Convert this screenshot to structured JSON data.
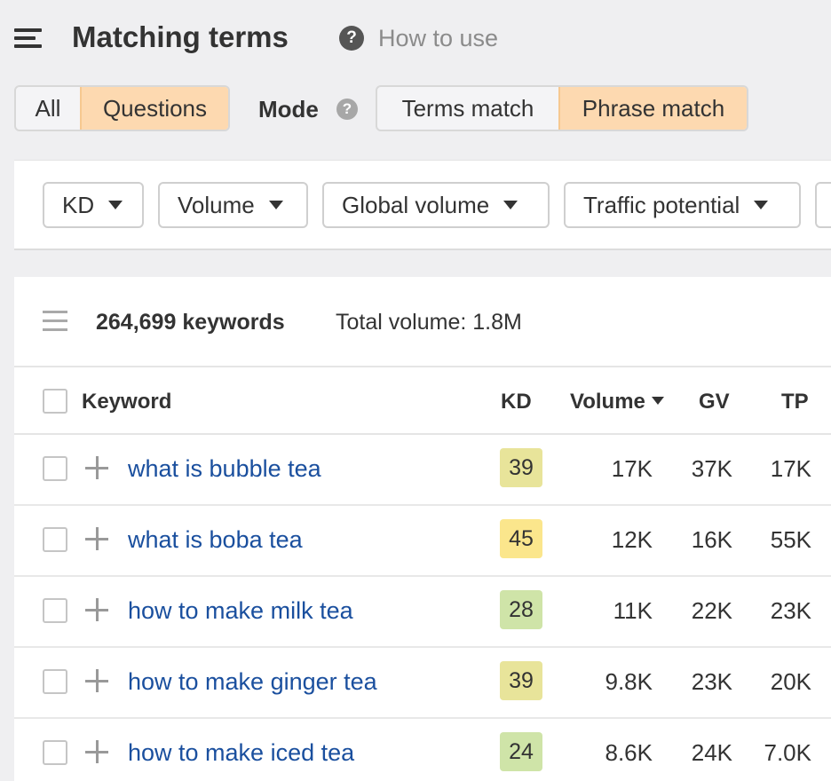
{
  "header": {
    "title": "Matching terms",
    "help_glyph": "?",
    "how_to_use": "How to use"
  },
  "tabs": {
    "all": "All",
    "questions": "Questions",
    "active": "Questions"
  },
  "mode": {
    "label": "Mode",
    "help_glyph": "?",
    "terms_match": "Terms match",
    "phrase_match": "Phrase match",
    "active": "Phrase match"
  },
  "filters": [
    {
      "label": "KD"
    },
    {
      "label": "Volume"
    },
    {
      "label": "Global volume"
    },
    {
      "label": "Traffic potential"
    }
  ],
  "summary": {
    "keywords": "264,699 keywords",
    "total_volume": "Total volume: 1.8M"
  },
  "table": {
    "columns": {
      "keyword": "Keyword",
      "kd": "KD",
      "volume": "Volume",
      "gv": "GV",
      "tp": "TP"
    },
    "sorted_by": "Volume",
    "rows": [
      {
        "keyword": "what is bubble tea",
        "kd": "39",
        "kd_color": "#e8e49a",
        "volume": "17K",
        "gv": "37K",
        "tp": "17K"
      },
      {
        "keyword": "what is boba tea",
        "kd": "45",
        "kd_color": "#fbe68c",
        "volume": "12K",
        "gv": "16K",
        "tp": "55K"
      },
      {
        "keyword": "how to make milk tea",
        "kd": "28",
        "kd_color": "#cfe4a8",
        "volume": "11K",
        "gv": "22K",
        "tp": "23K"
      },
      {
        "keyword": "how to make ginger tea",
        "kd": "39",
        "kd_color": "#e8e49a",
        "volume": "9.8K",
        "gv": "23K",
        "tp": "20K"
      },
      {
        "keyword": "how to make iced tea",
        "kd": "24",
        "kd_color": "#cfe4a8",
        "volume": "8.6K",
        "gv": "24K",
        "tp": "7.0K"
      }
    ]
  },
  "colors": {
    "active_segment": "#fdd9b0",
    "link": "#1a4f9e",
    "background": "#efeff1"
  }
}
